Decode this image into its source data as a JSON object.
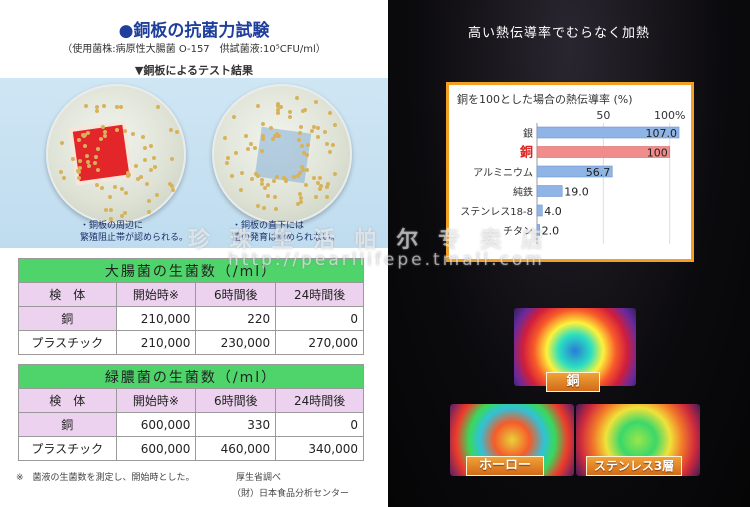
{
  "left": {
    "title": "銅板の抗菌力試験",
    "subtitle": "（使用菌株:病原性大腸菌 O-157　供試菌液:10⁵CFU/ml）",
    "test_header": "▼銅板によるテスト結果",
    "caption1": [
      "・銅板の周辺に",
      "繁殖阻止帯が認められる。"
    ],
    "caption2": [
      "・銅板の直下には",
      "菌の発育は認められない。"
    ],
    "table1": {
      "header": "大腸菌の生菌数（/ml）",
      "columns": [
        "検　体",
        "開始時※",
        "6時間後",
        "24時間後"
      ],
      "rows": [
        [
          "銅",
          "210,000",
          "220",
          "0"
        ],
        [
          "プラスチック",
          "210,000",
          "230,000",
          "270,000"
        ]
      ]
    },
    "table2": {
      "header": "緑膿菌の生菌数（/ml）",
      "columns": [
        "検　体",
        "開始時※",
        "6時間後",
        "24時間後"
      ],
      "rows": [
        [
          "銅",
          "600,000",
          "330",
          "0"
        ],
        [
          "プラスチック",
          "600,000",
          "460,000",
          "340,000"
        ]
      ]
    },
    "note": "※　菌液の生菌数を測定し、開始時とした。",
    "source1": "厚生省調べ",
    "source2": "（財）日本食品分析センター"
  },
  "right": {
    "title": "高い熱伝導率でむらなく加熱",
    "labels": [
      "銅",
      "ホーロー",
      "ステンレス3層"
    ]
  },
  "chart_data": {
    "type": "bar",
    "title": "銅を100とした場合の熱伝導率 (%)",
    "categories": [
      "銀",
      "銅",
      "アルミニウム",
      "純鉄",
      "ステンレス18-8",
      "チタン"
    ],
    "values": [
      107.0,
      100,
      56.7,
      19.0,
      4.0,
      2.0
    ],
    "value_labels": [
      "107.0",
      "100",
      "56.7",
      "19.0",
      "4.0",
      "2.0"
    ],
    "ticks": [
      "50",
      "100%"
    ],
    "tick_values": [
      50,
      100
    ],
    "xlim": [
      0,
      110
    ],
    "highlight": "銅",
    "colors": {
      "bar": "#8fb4e6",
      "highlight": "#f08c8c",
      "label_highlight": "#e02020"
    }
  },
  "watermark": [
    "珍 珠 生 活 帕 尔 专 卖 店",
    "http://pearllifepe.tmall.com"
  ]
}
